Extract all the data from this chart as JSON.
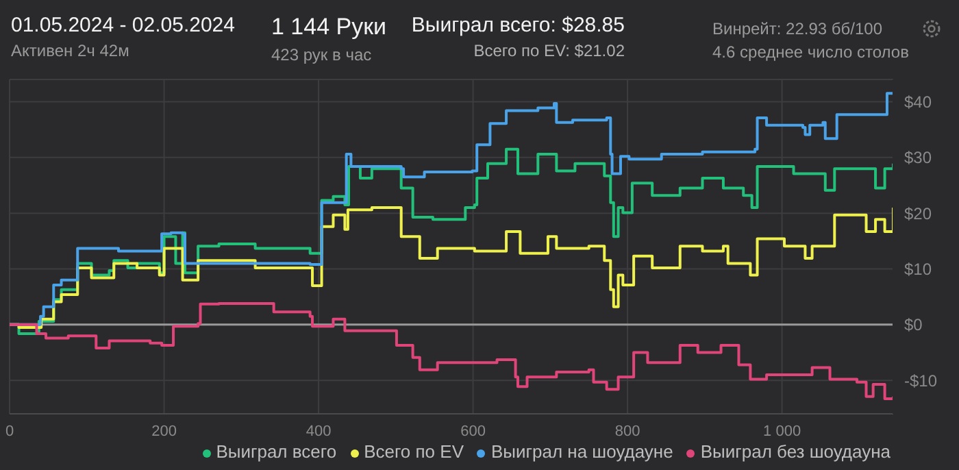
{
  "chart_data": {
    "type": "step",
    "title": "01.05.2024 - 02.05.2024",
    "subtitle": "Активен 2ч 42м",
    "annotations": [
      "1 144 Руки",
      "423 рук в час",
      "Выиграл всего: $28.85",
      "Всего по EV: $21.02",
      "Винрейт: 22.93 бб/100",
      "4.6 среднее число столов"
    ],
    "xlim": [
      0,
      1144
    ],
    "xticks": [
      0,
      200,
      400,
      600,
      800,
      {
        "value": 1000,
        "label": "1 000"
      }
    ],
    "ylim": [
      -16,
      44
    ],
    "yticks": [
      {
        "value": -10,
        "label": "-$10"
      },
      {
        "value": 0,
        "label": "$0"
      },
      {
        "value": 10,
        "label": "$10"
      },
      {
        "value": 20,
        "label": "$20"
      },
      {
        "value": 30,
        "label": "$30"
      },
      {
        "value": 40,
        "label": "$40"
      }
    ],
    "grid": true,
    "legend": "bottom",
    "ref_lines": [
      {
        "axis": "y",
        "value": 0,
        "color": "#9a9a9a"
      }
    ],
    "series": [
      {
        "name": "Выиграл всего",
        "color": "#22c07a",
        "x": [
          0,
          12,
          35,
          38,
          57,
          67,
          88,
          106,
          129,
          135,
          153,
          165,
          194,
          200,
          212,
          215,
          224,
          227,
          244,
          271,
          318,
          342,
          389,
          399,
          404,
          419,
          434,
          439,
          454,
          469,
          507,
          522,
          548,
          590,
          602,
          605,
          619,
          643,
          658,
          684,
          708,
          732,
          750,
          770,
          778,
          782,
          788,
          794,
          806,
          832,
          868,
          897,
          924,
          950,
          961,
          968,
          1015,
          1039,
          1056,
          1068,
          1121,
          1133,
          1144
        ],
        "values": [
          0,
          -1.6,
          -1.6,
          0.6,
          4.5,
          6.3,
          11,
          8.9,
          9.7,
          11.5,
          10.2,
          11,
          9.3,
          15.8,
          15.8,
          11,
          16.5,
          9.3,
          14.1,
          14.5,
          13.7,
          13.7,
          12.8,
          12.8,
          22.3,
          23,
          21.5,
          28.4,
          26.3,
          28,
          24.5,
          19.3,
          18.9,
          21,
          21.5,
          26.3,
          28.9,
          31.5,
          27.1,
          30.6,
          27.6,
          28.9,
          28.9,
          26.7,
          21.9,
          15.8,
          21,
          20.1,
          25.4,
          23.2,
          24.5,
          26.3,
          24.5,
          23.2,
          21,
          28.4,
          27.1,
          27.1,
          24.1,
          28,
          24.5,
          28,
          28.9
        ]
      },
      {
        "name": "Всего по EV",
        "color": "#eef04e",
        "x": [
          0,
          12,
          35,
          41,
          57,
          67,
          88,
          106,
          135,
          165,
          194,
          200,
          212,
          224,
          241,
          244,
          271,
          318,
          389,
          392,
          401,
          404,
          419,
          430,
          434,
          438,
          469,
          507,
          531,
          554,
          602,
          643,
          661,
          697,
          708,
          750,
          770,
          778,
          782,
          788,
          794,
          808,
          832,
          868,
          897,
          924,
          930,
          959,
          968,
          1003,
          1030,
          1039,
          1068,
          1100,
          1109,
          1121,
          1133,
          1144
        ],
        "values": [
          0,
          -0.5,
          -0.5,
          1,
          4.1,
          5.4,
          10.2,
          8.4,
          11,
          10.2,
          8.9,
          13.7,
          13.7,
          8,
          8,
          11.5,
          11.5,
          10.2,
          10.2,
          7,
          7,
          17.6,
          19.7,
          19.7,
          17.1,
          20.6,
          21,
          15.8,
          11.9,
          13.7,
          13.2,
          16.7,
          12.8,
          15.8,
          13.7,
          14.1,
          11.5,
          6.3,
          3.2,
          8.9,
          7.1,
          12.3,
          10.2,
          14.1,
          13.2,
          14.1,
          11,
          8.9,
          15.4,
          14.1,
          11.9,
          14.1,
          19.7,
          19.7,
          16.7,
          18.9,
          16.7,
          21
        ]
      },
      {
        "name": "Выиграл на шоудауне",
        "color": "#4aa3e8",
        "x": [
          0,
          35,
          40,
          44,
          57,
          67,
          88,
          141,
          194,
          197,
          209,
          224,
          227,
          241,
          342,
          389,
          399,
          404,
          430,
          436,
          442,
          507,
          510,
          537,
          599,
          605,
          622,
          643,
          684,
          705,
          708,
          729,
          773,
          778,
          780,
          788,
          791,
          802,
          844,
          897,
          965,
          968,
          980,
          1027,
          1030,
          1036,
          1053,
          1056,
          1068,
          1071,
          1133,
          1136,
          1144
        ],
        "values": [
          0,
          0,
          1.5,
          3.2,
          7.1,
          8,
          13.7,
          13.2,
          13.2,
          16.3,
          16.5,
          16.3,
          11,
          11,
          11,
          10.8,
          10.8,
          21.9,
          21.9,
          30.6,
          28.4,
          28,
          26.5,
          27.4,
          27.6,
          32.3,
          36.1,
          38.4,
          38.9,
          39.7,
          36.3,
          36.7,
          37.1,
          30.6,
          27.1,
          27.1,
          30.2,
          29.7,
          30.6,
          31,
          31.5,
          37.1,
          35.8,
          35.4,
          34.1,
          35.8,
          36.3,
          33.4,
          33.4,
          37.7,
          37.7,
          41.5,
          41.5
        ]
      },
      {
        "name": "Выиграл без шоудауна",
        "color": "#e0457a",
        "x": [
          0,
          35,
          47,
          76,
          112,
          129,
          159,
          182,
          197,
          212,
          244,
          247,
          271,
          342,
          389,
          392,
          419,
          434,
          469,
          501,
          522,
          531,
          554,
          602,
          631,
          655,
          658,
          670,
          708,
          750,
          756,
          770,
          773,
          785,
          788,
          806,
          808,
          826,
          862,
          868,
          891,
          921,
          944,
          959,
          980,
          1003,
          1039,
          1062,
          1097,
          1109,
          1118,
          1133,
          1144
        ],
        "values": [
          0,
          -1.6,
          -2.4,
          -2,
          -4.2,
          -2.9,
          -2.9,
          -3.3,
          -3.7,
          -0.3,
          0.2,
          3.7,
          3.8,
          2.3,
          1.5,
          -0.3,
          1,
          -1.1,
          -1.1,
          -3.7,
          -5.9,
          -8.1,
          -6.8,
          -6.8,
          -6.3,
          -9.4,
          -11.1,
          -9.4,
          -8.5,
          -8.1,
          -10.3,
          -10.3,
          -11.6,
          -11.6,
          -9.4,
          -9.4,
          -5,
          -6.8,
          -6.8,
          -3.7,
          -5,
          -3.7,
          -7.2,
          -9.8,
          -9,
          -9,
          -7.7,
          -9.8,
          -10.3,
          -12.9,
          -10.7,
          -13.3,
          -12.9
        ]
      }
    ]
  }
}
